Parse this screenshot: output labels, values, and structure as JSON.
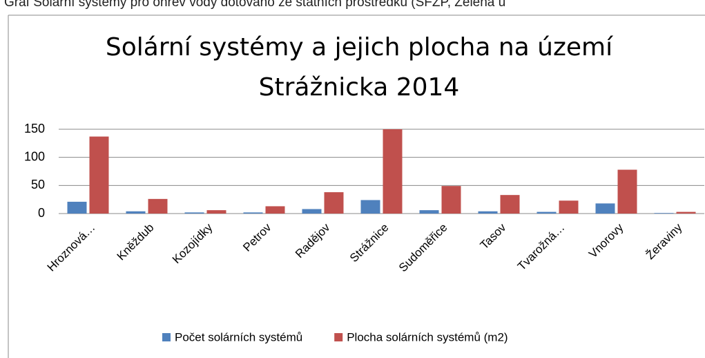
{
  "caption": "Graf Solární systémy pro ohřev vody dotováno ze státních prostředků (SFŽP, Zelená ú",
  "chart_data": {
    "type": "bar",
    "title": [
      "Solární systémy a jejich plocha na území",
      "Strážnicka 2014"
    ],
    "categories": [
      "Hroznová…",
      "Kněždub",
      "Kozojídky",
      "Petrov",
      "Radějov",
      "Strážnice",
      "Sudoměřice",
      "Tasov",
      "Tvarožná…",
      "Vnorovy",
      "Žeraviny"
    ],
    "series": [
      {
        "name": "Počet solárních systémů",
        "color": "#4f81bd",
        "values": [
          21,
          4,
          2,
          2,
          8,
          24,
          6,
          4,
          3,
          18,
          1
        ]
      },
      {
        "name": "Plocha solárních systémů (m2)",
        "color": "#c0504d",
        "values": [
          137,
          26,
          6,
          13,
          38,
          150,
          49,
          33,
          23,
          78,
          3
        ]
      }
    ],
    "ylim": [
      0,
      150
    ],
    "yticks": [
      0,
      50,
      100,
      150
    ],
    "grid": true,
    "legend": "bottom"
  }
}
